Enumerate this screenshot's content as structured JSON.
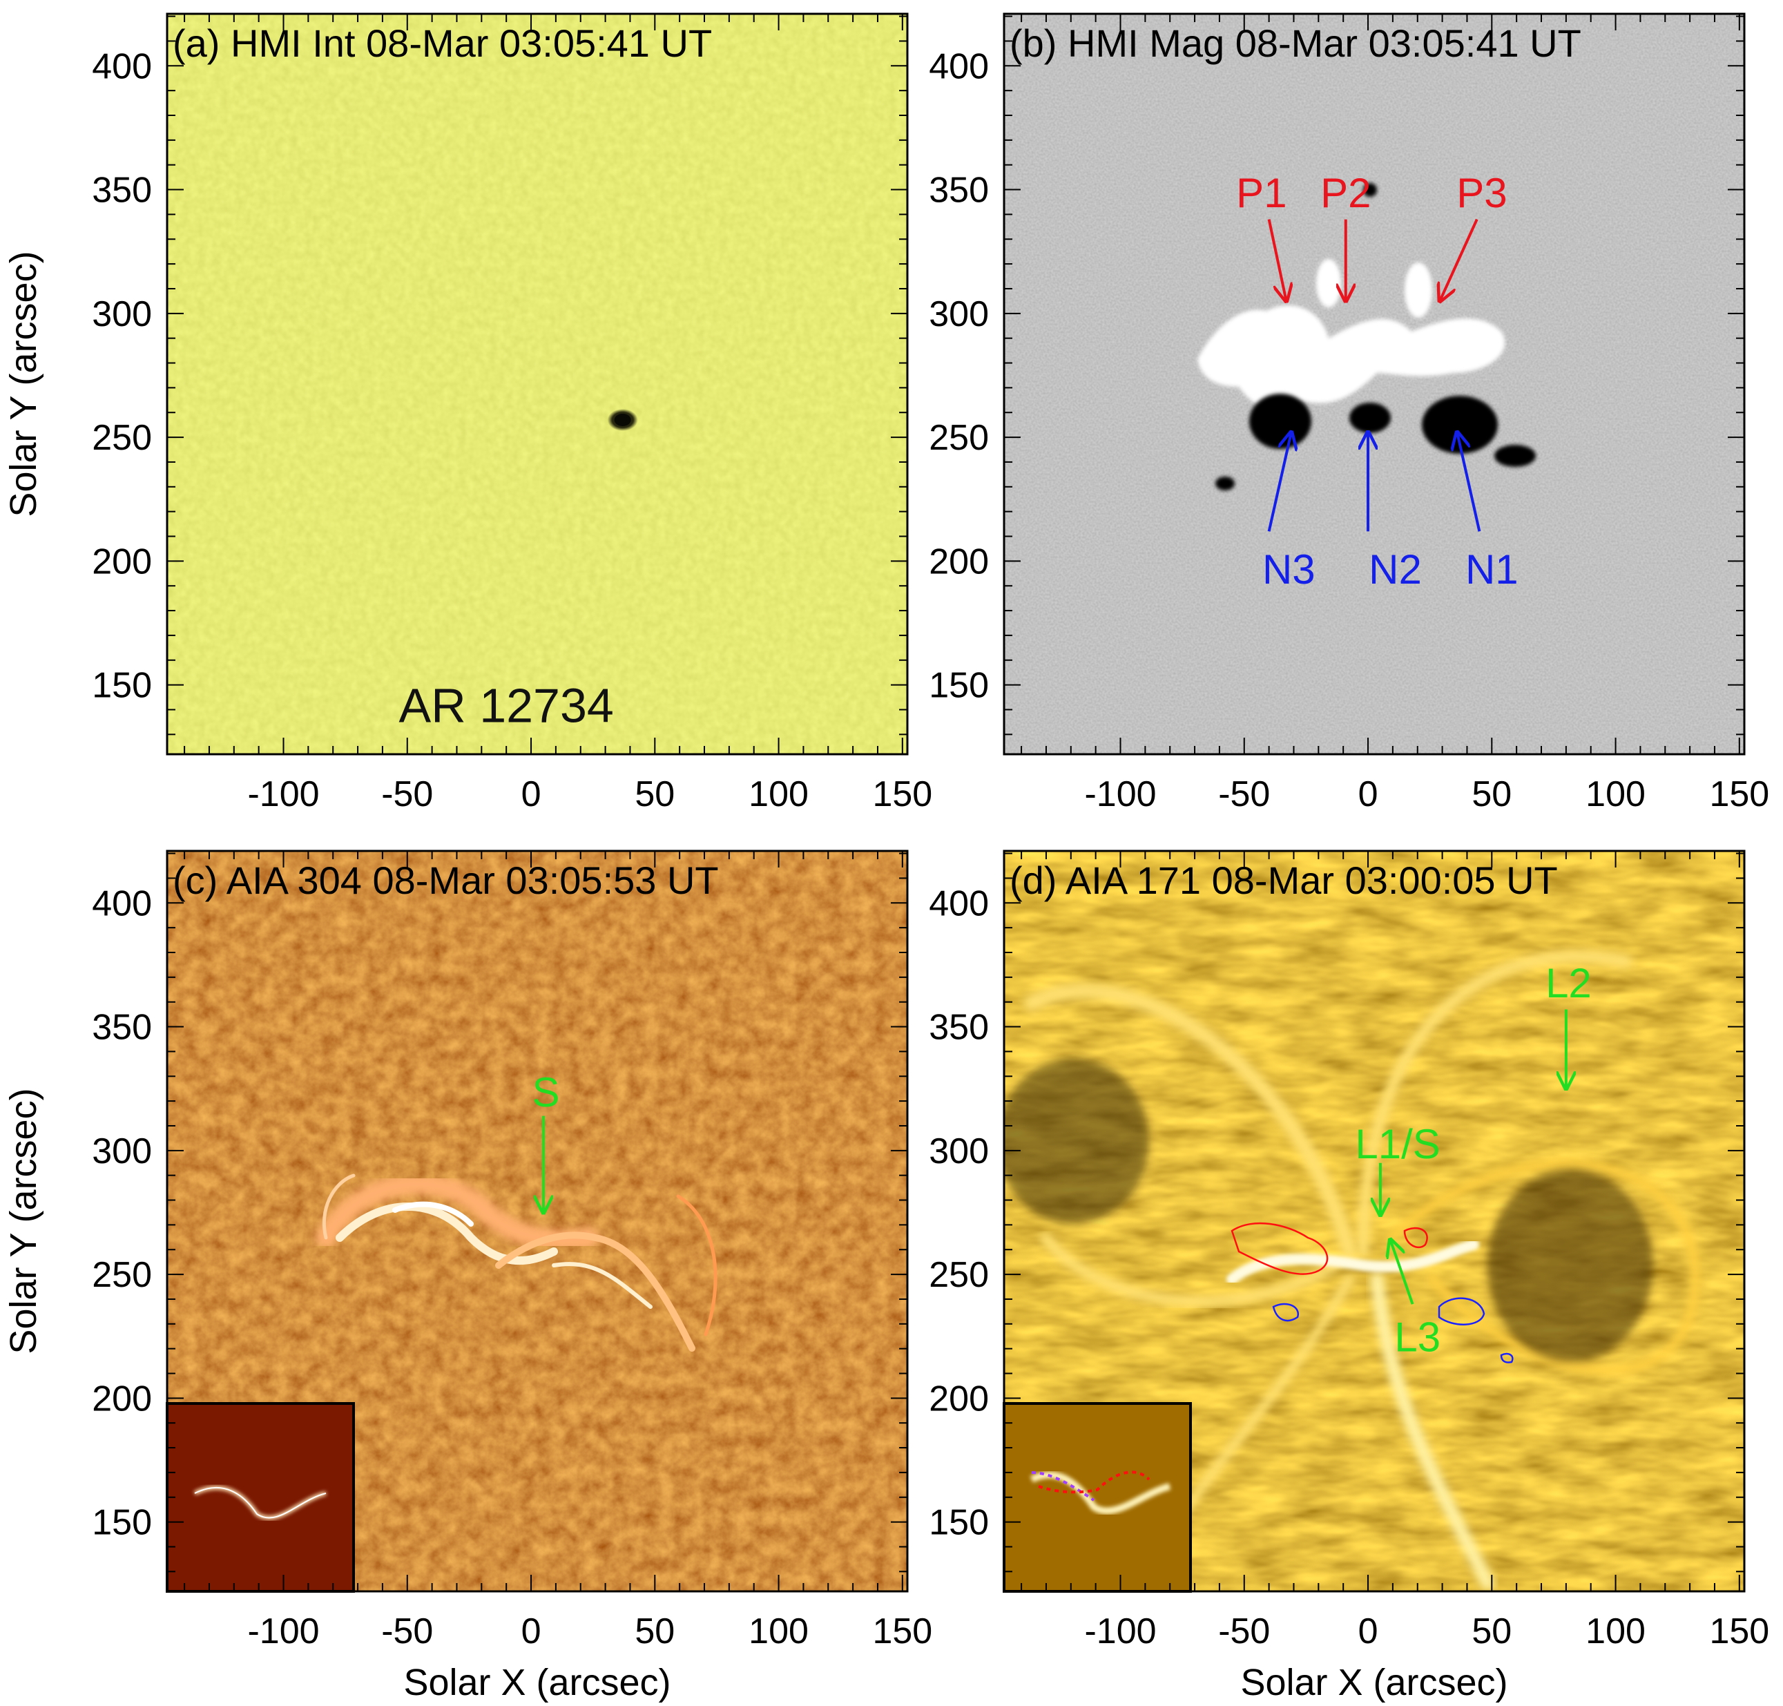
{
  "axes": {
    "xlabel": "Solar X (arcsec)",
    "ylabel": "Solar Y (arcsec)",
    "xlim": [
      -147,
      152
    ],
    "ylim": [
      122,
      421
    ],
    "xticks": [
      "-100",
      "-50",
      "0",
      "50",
      "100",
      "150"
    ],
    "yticks": [
      "150",
      "200",
      "250",
      "300",
      "350",
      "400"
    ],
    "xtick_values": [
      -100,
      -50,
      0,
      50,
      100,
      150
    ],
    "ytick_values": [
      150,
      200,
      250,
      300,
      350,
      400
    ]
  },
  "panels": [
    {
      "id": "a",
      "title": "(a) HMI Int 08-Mar 03:05:41 UT",
      "title_color": "#000000",
      "image": "HMI continuum intensity",
      "colors": {
        "background": "#c8d23c",
        "feature": "#1a1a05"
      },
      "sunspot": {
        "x": 37,
        "y": 257
      },
      "annotation": "AR  12734",
      "annotation_pos": {
        "x": -10,
        "y": 142
      }
    },
    {
      "id": "b",
      "title": "(b) HMI Mag 08-Mar 03:05:41 UT",
      "title_color": "#000000",
      "image": "HMI line-of-sight magnetogram",
      "colors": {
        "background": "#8a8a8a",
        "positive": "#ffffff",
        "negative": "#000000"
      },
      "labels": [
        {
          "text": "P1",
          "color": "#e8141e",
          "pos": {
            "x": -43,
            "y": 349
          },
          "arrow": {
            "from": [
              -40,
              338
            ],
            "to": [
              -33,
              305
            ]
          }
        },
        {
          "text": "P2",
          "color": "#e8141e",
          "pos": {
            "x": -9,
            "y": 349
          },
          "arrow": {
            "from": [
              -9,
              338
            ],
            "to": [
              -9,
              305
            ]
          }
        },
        {
          "text": "P3",
          "color": "#e8141e",
          "pos": {
            "x": 46,
            "y": 349
          },
          "arrow": {
            "from": [
              44,
              338
            ],
            "to": [
              29,
              305
            ]
          }
        },
        {
          "text": "N3",
          "color": "#1420e8",
          "pos": {
            "x": -32,
            "y": 197
          },
          "arrow": {
            "from": [
              -40,
              212
            ],
            "to": [
              -31,
              252
            ]
          }
        },
        {
          "text": "N2",
          "color": "#1420e8",
          "pos": {
            "x": 11,
            "y": 197
          },
          "arrow": {
            "from": [
              0,
              212
            ],
            "to": [
              0,
              252
            ]
          }
        },
        {
          "text": "N1",
          "color": "#1420e8",
          "pos": {
            "x": 50,
            "y": 197
          },
          "arrow": {
            "from": [
              45,
              212
            ],
            "to": [
              36,
              252
            ]
          }
        }
      ]
    },
    {
      "id": "c",
      "title": "(c) AIA 304 08-Mar 03:05:53 UT",
      "title_color": "#000000",
      "image": "AIA 304 A",
      "colors": {
        "background": "#a02a00",
        "bright": "#fff4d8"
      },
      "labels": [
        {
          "text": "S",
          "color": "#22dd22",
          "pos": {
            "x": 6,
            "y": 324
          },
          "arrow": {
            "from": [
              5,
              314
            ],
            "to": [
              5,
              275
            ]
          }
        }
      ],
      "inset": true
    },
    {
      "id": "d",
      "title": "(d) AIA 171 08-Mar 03:00:05 UT",
      "title_color": "#000000",
      "image": "AIA 171 A",
      "colors": {
        "background": "#b07600",
        "bright": "#fff2b0",
        "dark": "#1f1400",
        "positive_contour": "#ff1010",
        "negative_contour": "#1a22ff"
      },
      "labels": [
        {
          "text": "L2",
          "color": "#22dd22",
          "pos": {
            "x": 81,
            "y": 368
          },
          "arrow": {
            "from": [
              80,
              357
            ],
            "to": [
              80,
              325
            ]
          }
        },
        {
          "text": "L1/S",
          "color": "#22dd22",
          "pos": {
            "x": 12,
            "y": 303
          },
          "arrow": {
            "from": [
              5,
              295
            ],
            "to": [
              5,
              274
            ]
          }
        },
        {
          "text": "L3",
          "color": "#22dd22",
          "pos": {
            "x": 20,
            "y": 225
          },
          "arrow": {
            "from": [
              18,
              238
            ],
            "to": [
              9,
              264
            ]
          }
        }
      ],
      "inset": true
    }
  ]
}
